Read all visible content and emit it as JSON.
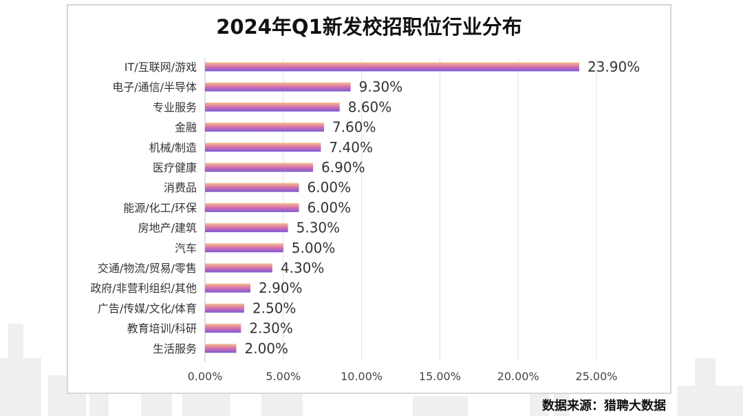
{
  "chart_data": {
    "type": "bar",
    "orientation": "horizontal",
    "title": "2024年Q1新发校招职位行业分布",
    "categories": [
      "IT/互联网/游戏",
      "电子/通信/半导体",
      "专业服务",
      "金融",
      "机械/制造",
      "医疗健康",
      "消费品",
      "能源/化工/环保",
      "房地产/建筑",
      "汽车",
      "交通/物流/贸易/零售",
      "政府/非营利组织/其他",
      "广告/传媒/文化/体育",
      "教育培训/科研",
      "生活服务"
    ],
    "values": [
      23.9,
      9.3,
      8.6,
      7.6,
      7.4,
      6.9,
      6.0,
      6.0,
      5.3,
      5.0,
      4.3,
      2.9,
      2.5,
      2.3,
      2.0
    ],
    "value_labels": [
      "23.90%",
      "9.30%",
      "8.60%",
      "7.60%",
      "7.40%",
      "6.90%",
      "6.00%",
      "6.00%",
      "5.30%",
      "5.00%",
      "4.30%",
      "2.90%",
      "2.50%",
      "2.30%",
      "2.00%"
    ],
    "xlim": [
      0,
      25
    ],
    "x_ticks": [
      0,
      5,
      10,
      15,
      20,
      25
    ],
    "x_tick_labels": [
      "0.00%",
      "5.00%",
      "10.00%",
      "15.00%",
      "20.00%",
      "25.00%"
    ],
    "grid": true,
    "legend": "none",
    "bar_gradient": [
      "#f7c08a",
      "#d56fae",
      "#7b5ad6"
    ]
  },
  "footer": {
    "source": "数据来源：猎聘大数据"
  }
}
